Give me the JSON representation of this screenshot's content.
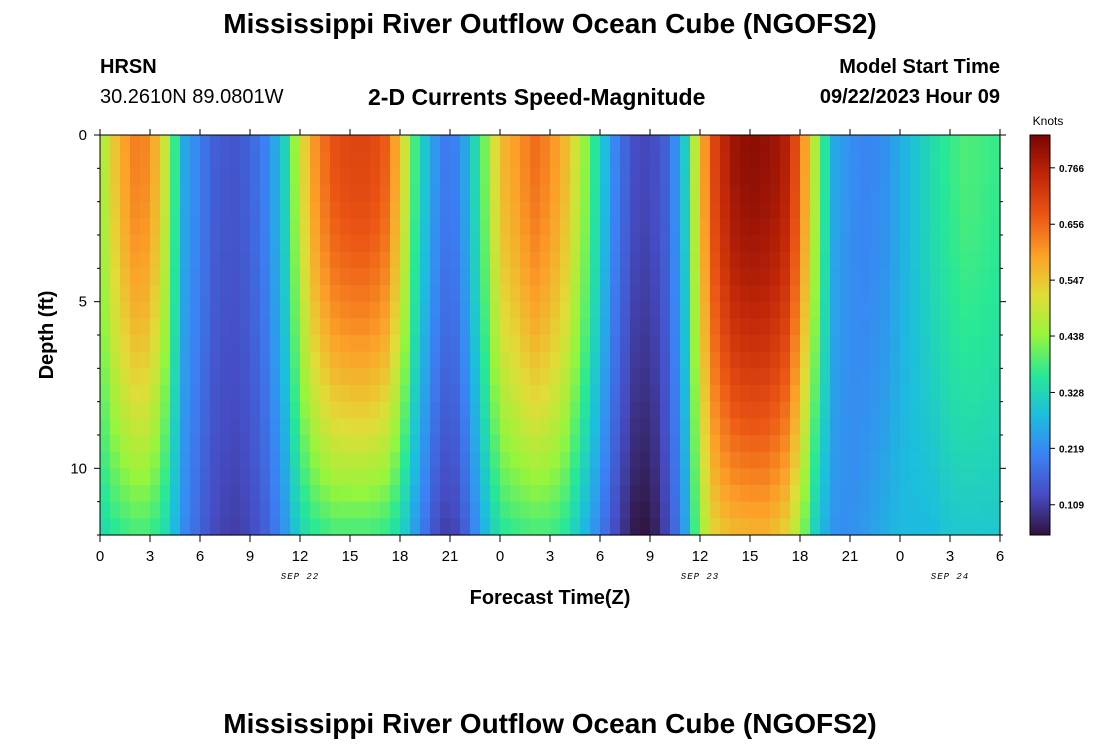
{
  "header": {
    "title": "Mississippi River Outflow Ocean Cube (NGOFS2)",
    "station": "HRSN",
    "coordinates": "30.2610N  89.0801W",
    "subtitle": "2-D Currents Speed-Magnitude",
    "model_start_label": "Model Start Time",
    "model_start_value": "09/22/2023 Hour 09"
  },
  "footer": {
    "title": "Mississippi River Outflow Ocean Cube (NGOFS2)"
  },
  "chart_data": {
    "type": "heatmap",
    "title": "2-D Currents Speed-Magnitude",
    "xlabel": "Forecast Time(Z)",
    "ylabel": "Depth (ft)",
    "x_range_hours": [
      0,
      54
    ],
    "y_range_ft": [
      0,
      12
    ],
    "x_tick_labels": [
      "0",
      "3",
      "6",
      "9",
      "12",
      "15",
      "18",
      "21",
      "0",
      "3",
      "6",
      "9",
      "12",
      "15",
      "18",
      "21",
      "0",
      "3",
      "6"
    ],
    "y_ticks": [
      0,
      5,
      10
    ],
    "y_tick_labels": [
      "0",
      "5",
      "10"
    ],
    "date_labels": [
      {
        "text": "SEP 22",
        "hour": 12
      },
      {
        "text": "SEP 23",
        "hour": 36
      },
      {
        "text": "SEP 24",
        "hour": 51
      }
    ],
    "colorbar": {
      "label": "Knots",
      "min": 0.05,
      "max": 0.83,
      "tick_values": [
        0.109,
        0.219,
        0.328,
        0.438,
        0.547,
        0.656,
        0.766
      ],
      "tick_labels": [
        "0.109",
        "0.219",
        "0.328",
        "0.438",
        "0.547",
        "0.656",
        "0.766"
      ]
    },
    "surface_speed_knots": {
      "hours": [
        0,
        1,
        2,
        3,
        4,
        5,
        6,
        7,
        8,
        9,
        10,
        11,
        12,
        13,
        14,
        15,
        16,
        17,
        18,
        19,
        20,
        21,
        22,
        23,
        24,
        25,
        26,
        27,
        28,
        29,
        30,
        31,
        32,
        33,
        34,
        35,
        36,
        37,
        38,
        39,
        40,
        41,
        42,
        43,
        44,
        45,
        46,
        47,
        48,
        49,
        50,
        51,
        52,
        53,
        54
      ],
      "values": [
        0.44,
        0.56,
        0.63,
        0.62,
        0.48,
        0.26,
        0.2,
        0.15,
        0.14,
        0.16,
        0.21,
        0.3,
        0.5,
        0.62,
        0.68,
        0.7,
        0.7,
        0.68,
        0.56,
        0.36,
        0.24,
        0.18,
        0.26,
        0.4,
        0.56,
        0.6,
        0.65,
        0.62,
        0.56,
        0.45,
        0.32,
        0.2,
        0.13,
        0.12,
        0.16,
        0.28,
        0.56,
        0.72,
        0.79,
        0.81,
        0.8,
        0.78,
        0.66,
        0.45,
        0.26,
        0.22,
        0.21,
        0.22,
        0.26,
        0.3,
        0.34,
        0.37,
        0.39,
        0.38,
        0.37
      ]
    },
    "bottom_speed_knots": {
      "hours": [
        0,
        1,
        2,
        3,
        4,
        5,
        6,
        7,
        8,
        9,
        10,
        11,
        12,
        13,
        14,
        15,
        16,
        17,
        18,
        19,
        20,
        21,
        22,
        23,
        24,
        25,
        26,
        27,
        28,
        29,
        30,
        31,
        32,
        33,
        34,
        35,
        36,
        37,
        38,
        39,
        40,
        41,
        42,
        43,
        44,
        45,
        46,
        47,
        48,
        49,
        50,
        51,
        52,
        53,
        54
      ],
      "values": [
        0.33,
        0.36,
        0.38,
        0.38,
        0.33,
        0.22,
        0.16,
        0.12,
        0.11,
        0.12,
        0.16,
        0.22,
        0.32,
        0.36,
        0.38,
        0.38,
        0.38,
        0.37,
        0.33,
        0.23,
        0.14,
        0.1,
        0.16,
        0.26,
        0.35,
        0.37,
        0.38,
        0.38,
        0.35,
        0.28,
        0.2,
        0.12,
        0.06,
        0.05,
        0.12,
        0.22,
        0.44,
        0.54,
        0.56,
        0.57,
        0.57,
        0.54,
        0.45,
        0.3,
        0.23,
        0.22,
        0.24,
        0.26,
        0.28,
        0.28,
        0.28,
        0.3,
        0.3,
        0.3,
        0.3
      ]
    }
  }
}
